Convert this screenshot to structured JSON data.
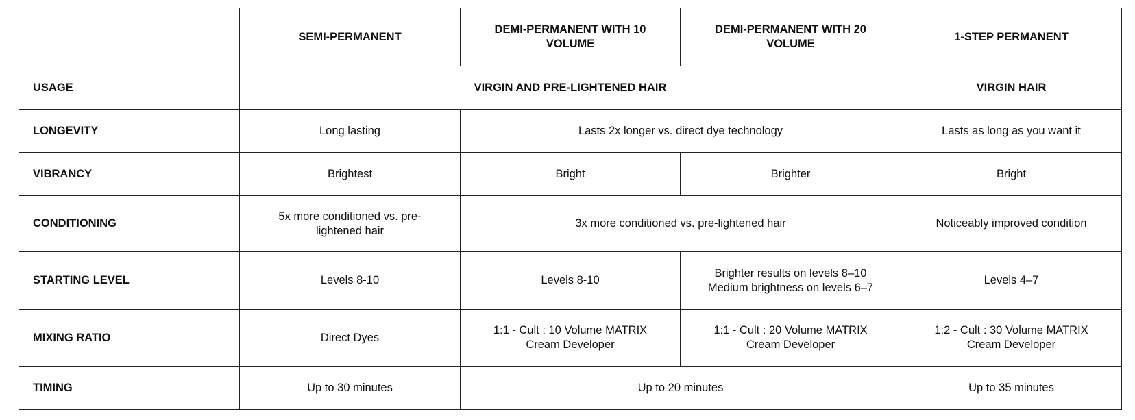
{
  "columns": [
    "",
    "SEMI-PERMANENT",
    "DEMI-PERMANENT WITH 10 VOLUME",
    "DEMI-PERMANENT WITH 20 VOLUME",
    "1-STEP PERMANENT"
  ],
  "rows": {
    "usage": {
      "label": "USAGE",
      "demi_semi": "VIRGIN AND PRE-LIGHTENED HAIR",
      "permanent": "VIRGIN HAIR"
    },
    "longevity": {
      "label": "LONGEVITY",
      "semi": "Long lasting",
      "demi": "Lasts 2x longer vs. direct dye technology",
      "permanent": "Lasts as long as you want it"
    },
    "vibrancy": {
      "label": "VIBRANCY",
      "semi": "Brightest",
      "demi10": "Bright",
      "demi20": "Brighter",
      "permanent": "Bright"
    },
    "conditioning": {
      "label": "CONDITIONING",
      "semi": "5x more conditioned vs. pre-lightened hair",
      "demi": "3x more conditioned vs. pre-lightened hair",
      "permanent": "Noticeably improved condition"
    },
    "starting_level": {
      "label": "STARTING LEVEL",
      "semi": "Levels 8-10",
      "demi10": "Levels 8-10",
      "demi20_line1": "Brighter results on levels 8–10",
      "demi20_line2": "Medium brightness on levels 6–7",
      "permanent": "Levels 4–7"
    },
    "mixing_ratio": {
      "label": "MIXING RATIO",
      "semi": "Direct Dyes",
      "demi10": "1:1 - Cult : 10 Volume MATRIX Cream Developer",
      "demi20": "1:1 - Cult : 20 Volume MATRIX Cream Developer",
      "permanent": "1:2 - Cult : 30 Volume MATRIX Cream Developer"
    },
    "timing": {
      "label": "TIMING",
      "semi": "Up to 30 minutes",
      "demi": "Up to 20 minutes",
      "permanent": "Up to 35 minutes"
    }
  }
}
